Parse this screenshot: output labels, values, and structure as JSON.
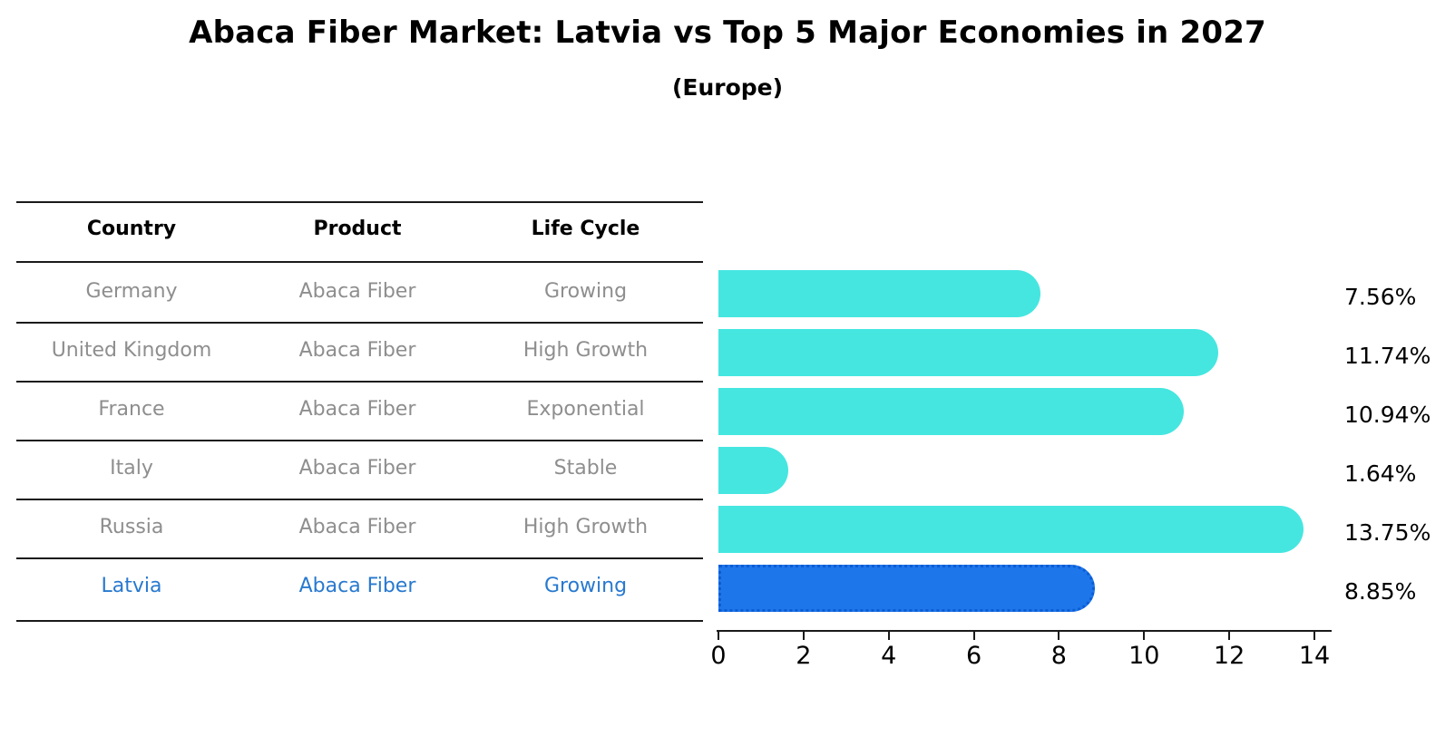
{
  "header": {
    "title": "Abaca Fiber Market: Latvia vs Top 5 Major Economies in 2027",
    "subtitle": "(Europe)"
  },
  "table": {
    "columns": [
      "Country",
      "Product",
      "Life Cycle"
    ],
    "rows": [
      {
        "country": "Germany",
        "product": "Abaca Fiber",
        "life_cycle": "Growing",
        "value_label": "7.56%"
      },
      {
        "country": "United Kingdom",
        "product": "Abaca Fiber",
        "life_cycle": "High Growth",
        "value_label": "11.74%"
      },
      {
        "country": "France",
        "product": "Abaca Fiber",
        "life_cycle": "Exponential",
        "value_label": "10.94%"
      },
      {
        "country": "Italy",
        "product": "Abaca Fiber",
        "life_cycle": "Stable",
        "value_label": "1.64%"
      },
      {
        "country": "Russia",
        "product": "Abaca Fiber",
        "life_cycle": "High Growth",
        "value_label": "13.75%"
      },
      {
        "country": "Latvia",
        "product": "Abaca Fiber",
        "life_cycle": "Growing",
        "value_label": "8.85%"
      }
    ]
  },
  "chart_data": {
    "type": "bar",
    "orientation": "horizontal",
    "title": "Abaca Fiber Market: Latvia vs Top 5 Major Economies in 2027",
    "subtitle": "(Europe)",
    "categories": [
      "Germany",
      "United Kingdom",
      "France",
      "Italy",
      "Russia",
      "Latvia"
    ],
    "values": [
      7.56,
      11.74,
      10.94,
      1.64,
      13.75,
      8.85
    ],
    "value_labels": [
      "7.56%",
      "11.74%",
      "10.94%",
      "1.64%",
      "13.75%",
      "8.85%"
    ],
    "unit": "%",
    "xlim": [
      0,
      14
    ],
    "x_ticks": [
      0,
      2,
      4,
      6,
      8,
      10,
      12,
      14
    ],
    "x_tick_labels": [
      "0",
      "2",
      "4",
      "6",
      "8",
      "10",
      "12",
      "14"
    ],
    "grid": false,
    "legend": false,
    "bar_color": "#45e6e0",
    "highlight_index": 5,
    "highlight_color": "#1d76ea",
    "highlight_edge_color": "#0c5cd6",
    "highlight_edge_style": "dotted",
    "highlight_text_color": "#2879cf",
    "table_text_color": "#8e8e8e"
  }
}
